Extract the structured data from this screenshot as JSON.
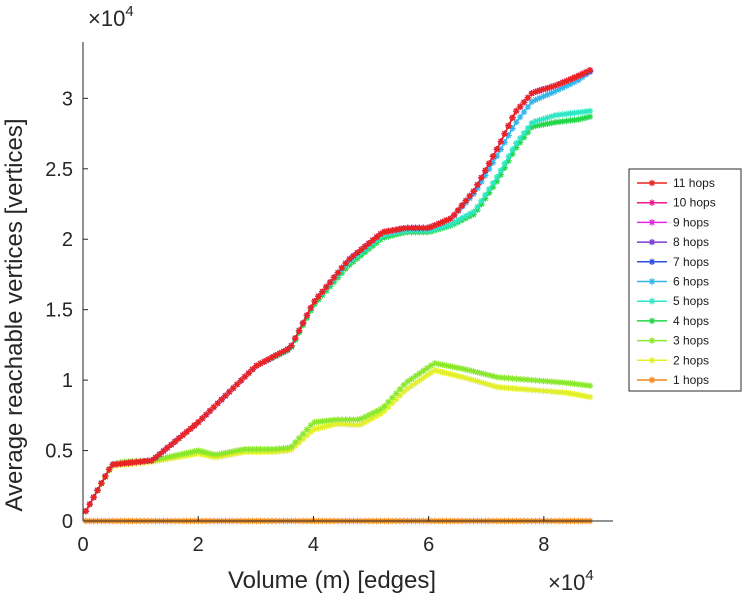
{
  "chart_data": {
    "type": "line",
    "title": "",
    "xlabel": "Volume (m) [edges]",
    "ylabel": "Average reachable vertices [vertices]",
    "x_multiplier": {
      "base": "×10",
      "exp": "4"
    },
    "y_multiplier": {
      "base": "×10",
      "exp": "4"
    },
    "xlim": [
      0,
      92000
    ],
    "ylim": [
      0,
      34000
    ],
    "xticks": [
      0,
      20000,
      40000,
      60000,
      80000
    ],
    "xtick_labels": [
      "0",
      "2",
      "4",
      "6",
      "8"
    ],
    "yticks": [
      0,
      5000,
      10000,
      15000,
      20000,
      25000,
      30000
    ],
    "ytick_labels": [
      "0",
      "0.5",
      "1",
      "1.5",
      "2",
      "2.5",
      "3"
    ],
    "grid": false,
    "legend_position": "right",
    "series": [
      {
        "name": "11 hops",
        "color": "#e8251e",
        "x": [
          500,
          5000,
          12000,
          20000,
          30000,
          36000,
          40000,
          46000,
          52000,
          56000,
          60000,
          64000,
          68000,
          72000,
          75000,
          78000,
          82000,
          86000,
          88000
        ],
        "y": [
          700,
          4000,
          4300,
          7000,
          11000,
          12300,
          15500,
          18500,
          20500,
          20800,
          20800,
          21500,
          23500,
          26500,
          29000,
          30400,
          30900,
          31600,
          32000
        ]
      },
      {
        "name": "10 hops",
        "color": "#f0198e",
        "x": [
          500,
          5000,
          12000,
          20000,
          30000,
          36000,
          40000,
          46000,
          52000,
          56000,
          60000,
          64000,
          68000,
          72000,
          75000,
          78000,
          82000,
          86000,
          88000
        ],
        "y": [
          700,
          4000,
          4300,
          7000,
          11000,
          12300,
          15500,
          18500,
          20500,
          20800,
          20800,
          21500,
          23500,
          26500,
          29000,
          30400,
          30900,
          31600,
          32000
        ]
      },
      {
        "name": "9 hops",
        "color": "#e02ae8",
        "x": [
          500,
          5000,
          12000,
          20000,
          30000,
          36000,
          40000,
          46000,
          52000,
          56000,
          60000,
          64000,
          68000,
          72000,
          75000,
          78000,
          82000,
          86000,
          88000
        ],
        "y": [
          700,
          4000,
          4300,
          7000,
          11000,
          12300,
          15500,
          18500,
          20500,
          20800,
          20800,
          21500,
          23500,
          26500,
          29000,
          30400,
          30900,
          31600,
          32000
        ]
      },
      {
        "name": "8 hops",
        "color": "#7a3ad8",
        "x": [
          500,
          5000,
          12000,
          20000,
          30000,
          36000,
          40000,
          46000,
          52000,
          56000,
          60000,
          64000,
          68000,
          72000,
          75000,
          78000,
          82000,
          86000,
          88000
        ],
        "y": [
          700,
          4000,
          4300,
          7000,
          11000,
          12300,
          15500,
          18500,
          20500,
          20800,
          20800,
          21500,
          23500,
          26500,
          29000,
          30400,
          30900,
          31600,
          32000
        ]
      },
      {
        "name": "7 hops",
        "color": "#2b4ee0",
        "x": [
          500,
          5000,
          12000,
          20000,
          30000,
          36000,
          40000,
          46000,
          52000,
          56000,
          60000,
          64000,
          68000,
          72000,
          75000,
          78000,
          82000,
          86000,
          88000
        ],
        "y": [
          700,
          4000,
          4300,
          7000,
          11000,
          12300,
          15500,
          18500,
          20500,
          20800,
          20800,
          21500,
          23500,
          26500,
          29000,
          30400,
          30900,
          31600,
          31900
        ]
      },
      {
        "name": "6 hops",
        "color": "#32b6ec",
        "x": [
          500,
          5000,
          12000,
          20000,
          30000,
          36000,
          40000,
          46000,
          52000,
          56000,
          60000,
          64000,
          68000,
          72000,
          75000,
          78000,
          82000,
          86000,
          88000
        ],
        "y": [
          700,
          4000,
          4300,
          7000,
          11000,
          12300,
          15500,
          18500,
          20500,
          20800,
          20800,
          21500,
          23300,
          26000,
          28200,
          29800,
          30500,
          31300,
          31900
        ]
      },
      {
        "name": "5 hops",
        "color": "#2fe6c4",
        "x": [
          500,
          5000,
          12000,
          20000,
          30000,
          36000,
          40000,
          46000,
          52000,
          56000,
          60000,
          64000,
          68000,
          72000,
          75000,
          78000,
          82000,
          86000,
          88000
        ],
        "y": [
          700,
          4000,
          4300,
          7000,
          11000,
          12300,
          15500,
          18300,
          20300,
          20600,
          20600,
          21100,
          22000,
          24500,
          26700,
          28300,
          28800,
          29000,
          29100
        ]
      },
      {
        "name": "4 hops",
        "color": "#22d84a",
        "x": [
          500,
          5000,
          12000,
          20000,
          30000,
          36000,
          40000,
          46000,
          52000,
          56000,
          60000,
          64000,
          68000,
          72000,
          75000,
          78000,
          82000,
          86000,
          88000
        ],
        "y": [
          700,
          4000,
          4300,
          7000,
          11000,
          12200,
          15300,
          18100,
          20100,
          20500,
          20500,
          21000,
          21800,
          24200,
          26400,
          28000,
          28300,
          28500,
          28700
        ]
      },
      {
        "name": "3 hops",
        "color": "#8ae82c",
        "x": [
          500,
          5000,
          7000,
          12000,
          20000,
          23000,
          28000,
          33000,
          36000,
          40000,
          44000,
          48000,
          52000,
          56000,
          61000,
          66000,
          72000,
          78000,
          84000,
          88000
        ],
        "y": [
          700,
          4000,
          4200,
          4300,
          5000,
          4700,
          5100,
          5100,
          5200,
          7000,
          7200,
          7200,
          8000,
          9800,
          11200,
          10800,
          10200,
          10000,
          9800,
          9600
        ]
      },
      {
        "name": "2 hops",
        "color": "#e2f02a",
        "x": [
          500,
          5000,
          7000,
          12000,
          20000,
          23000,
          28000,
          33000,
          36000,
          40000,
          44000,
          48000,
          52000,
          56000,
          61000,
          66000,
          72000,
          78000,
          84000,
          88000
        ],
        "y": [
          700,
          3900,
          4000,
          4200,
          4800,
          4500,
          4900,
          4900,
          5000,
          6500,
          6900,
          6800,
          7700,
          9300,
          10700,
          10200,
          9500,
          9300,
          9100,
          8800
        ]
      },
      {
        "name": "1 hops",
        "color": "#f08a1c",
        "x": [
          500,
          88000
        ],
        "y": [
          0,
          0
        ]
      }
    ]
  }
}
